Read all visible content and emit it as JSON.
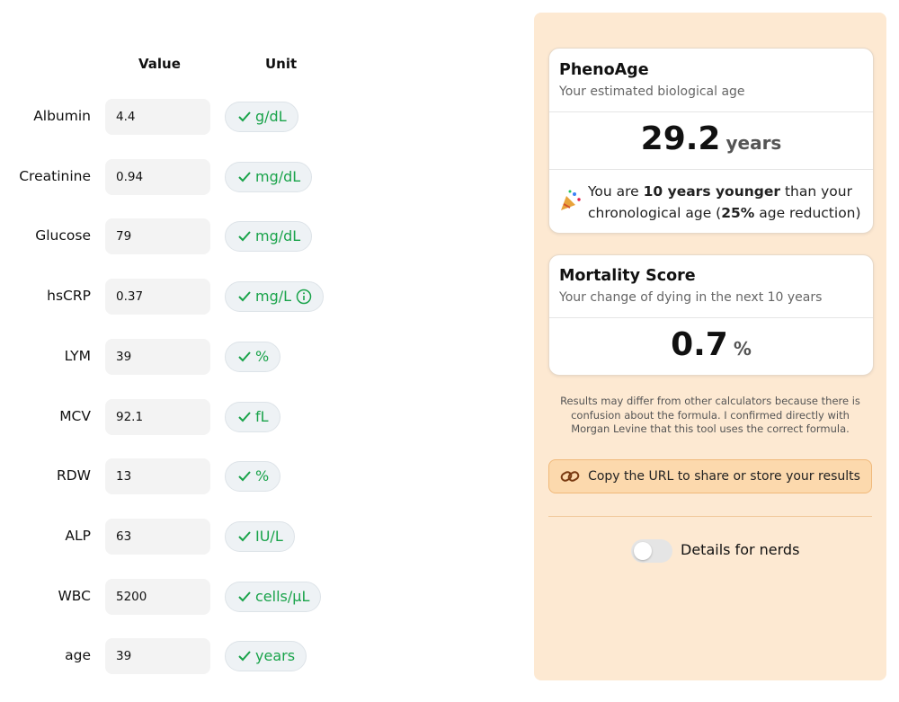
{
  "form": {
    "headers": [
      "Value",
      "Unit"
    ],
    "rows": [
      {
        "label": "Albumin",
        "value": "4.4",
        "unit": "g/dL"
      },
      {
        "label": "Creatinine",
        "value": "0.94",
        "unit": "mg/dL"
      },
      {
        "label": "Glucose",
        "value": "79",
        "unit": "mg/dL"
      },
      {
        "label": "hsCRP",
        "value": "0.37",
        "unit": "mg/L",
        "info_icon": true
      },
      {
        "label": "LYM",
        "value": "39",
        "unit": "%"
      },
      {
        "label": "MCV",
        "value": "92.1",
        "unit": "fL"
      },
      {
        "label": "RDW",
        "value": "13",
        "unit": "%"
      },
      {
        "label": "ALP",
        "value": "63",
        "unit": "IU/L"
      },
      {
        "label": "WBC",
        "value": "5200",
        "unit": "cells/µL"
      },
      {
        "label": "age",
        "value": "39",
        "unit": "years"
      }
    ]
  },
  "results": {
    "phenoage": {
      "title": "PhenoAge",
      "subtitle": "Your estimated biological age",
      "value": "29.2",
      "unit": "years",
      "message": [
        {
          "text": "You are ",
          "bold": false
        },
        {
          "text": "10 years younger",
          "bold": true
        },
        {
          "text": " than your chronological age (",
          "bold": false
        },
        {
          "text": "25%",
          "bold": true
        },
        {
          "text": " age reduction)",
          "bold": false
        }
      ]
    },
    "mortality": {
      "title": "Mortality Score",
      "subtitle": "Your change of dying in the next 10 years",
      "value": "0.7",
      "unit": "%"
    },
    "note": "Results may differ from other calculators because there is confusion about the formula. I confirmed directly with Morgan Levine that this tool uses the correct formula.",
    "copy_button": "Copy the URL to share or store your results",
    "toggle_label": "Details for nerds"
  }
}
